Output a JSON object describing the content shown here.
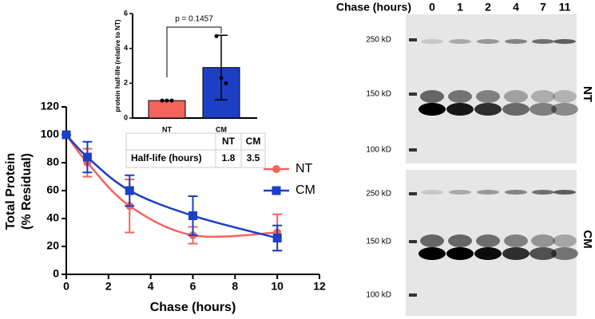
{
  "chart_data": [
    {
      "type": "line",
      "xlabel": "Chase (hours)",
      "ylabel": [
        "Total Protein",
        "(% Residual)"
      ],
      "x": [
        0,
        1,
        3,
        6,
        10
      ],
      "series": [
        {
          "name": "NT",
          "color": "#f4645c",
          "marker": "circle",
          "values": [
            100,
            80,
            49,
            28,
            30
          ],
          "errors": [
            0,
            10,
            19,
            6,
            13
          ]
        },
        {
          "name": "CM",
          "color": "#1c3fc4",
          "marker": "square",
          "values": [
            100,
            84,
            60,
            42,
            26
          ],
          "errors": [
            0,
            11,
            11,
            14,
            9
          ]
        }
      ],
      "xlim": [
        0,
        12
      ],
      "xticks": [
        0,
        2,
        4,
        6,
        8,
        10,
        12
      ],
      "ylim": [
        0,
        120
      ],
      "yticks": [
        0,
        20,
        40,
        60,
        80,
        100,
        120
      ],
      "legend": "right"
    },
    {
      "type": "bar",
      "ylabel": "protein half-life (relative to NT)",
      "annotation": "p = 0.1457",
      "categories": [
        "NT",
        "CM"
      ],
      "values": [
        1,
        2.9
      ],
      "errors": [
        0,
        1.85
      ],
      "points": [
        [
          1,
          1,
          1
        ],
        [
          4.7,
          2.3,
          2.0
        ]
      ],
      "colors": [
        "#f4645c",
        "#1c3fc4"
      ],
      "ylim": [
        0,
        6
      ],
      "yticks": [
        0,
        2,
        4,
        6
      ]
    }
  ],
  "table": {
    "columns": [
      "NT",
      "CM"
    ],
    "rows": [
      {
        "label": "Half-life (hours)",
        "values": [
          1.8,
          3.5
        ]
      }
    ]
  },
  "blot": {
    "header": "Chase (hours)",
    "lanes": [
      0,
      1,
      2,
      4,
      7,
      11
    ],
    "panels": [
      {
        "label": "NT",
        "markers": [
          "250 kD",
          "150 kD",
          "100 kD"
        ]
      },
      {
        "label": "CM",
        "markers": [
          "250 kD",
          "150 kD",
          "100 kD"
        ]
      }
    ]
  }
}
